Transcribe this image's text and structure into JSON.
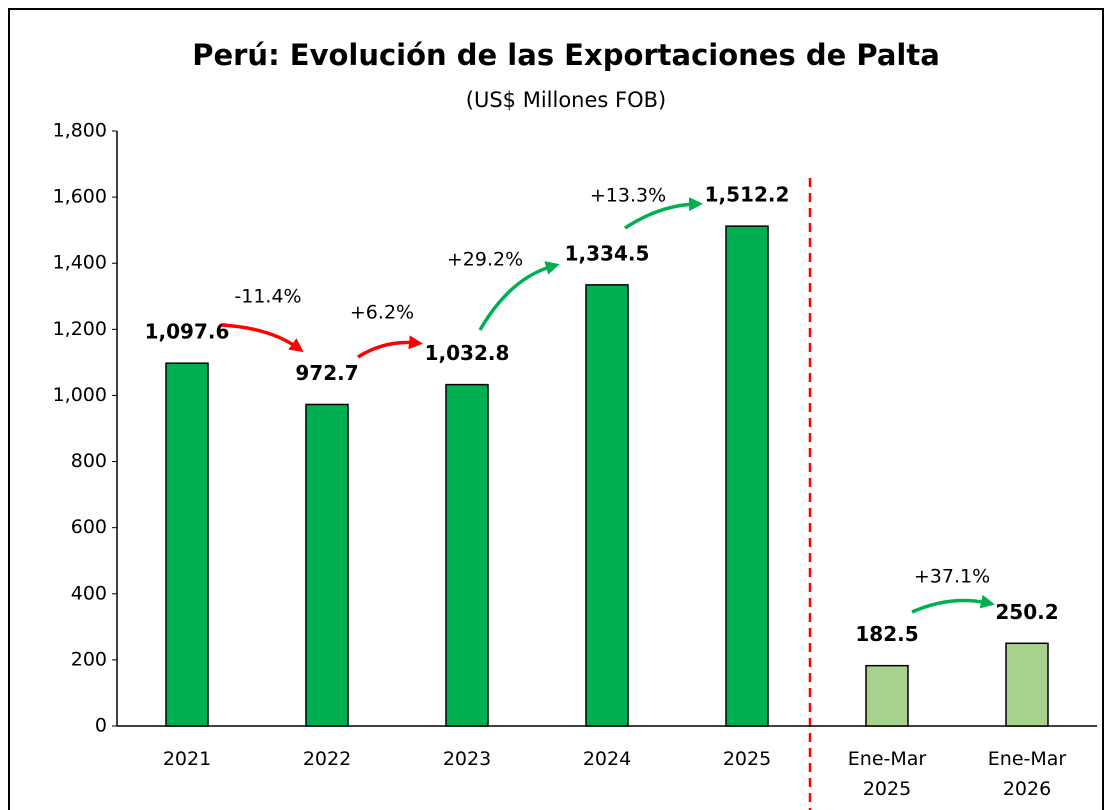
{
  "chart_data": {
    "type": "bar",
    "title": "Perú: Evolución de las Exportaciones de Palta",
    "subtitle": "(US$ Millones FOB)",
    "categories": [
      "2021",
      "2022",
      "2023",
      "2024",
      "2025",
      "Ene-Mar 2025",
      "Ene-Mar 2026"
    ],
    "values": [
      1097.6,
      972.7,
      1032.8,
      1334.5,
      1512.2,
      182.5,
      250.2
    ],
    "value_labels": [
      "1,097.6",
      "972.7",
      "1,032.8",
      "1,334.5",
      "1,512.2",
      "182.5",
      "250.2"
    ],
    "colors": [
      "#00b050",
      "#00b050",
      "#00b050",
      "#00b050",
      "#00b050",
      "#a9d18e",
      "#a9d18e"
    ],
    "ylim": [
      0,
      1800
    ],
    "yticks": [
      0,
      200,
      400,
      600,
      800,
      {
        "value": 1000,
        "label": "1,000"
      },
      {
        "value": 1200,
        "label": "1,200"
      },
      {
        "value": 1400,
        "label": "1,400"
      },
      {
        "value": 1600,
        "label": "1,600"
      },
      {
        "value": 1800,
        "label": "1,800"
      }
    ],
    "annotations": [
      {
        "text": "-11.4%",
        "color": "#ff0000"
      },
      {
        "text": "+6.2%",
        "color": "#ff0000"
      },
      {
        "text": "+29.2%",
        "color": "#00b050"
      },
      {
        "text": "+13.3%",
        "color": "#00b050"
      },
      {
        "text": "+37.1%",
        "color": "#00b050"
      }
    ]
  }
}
